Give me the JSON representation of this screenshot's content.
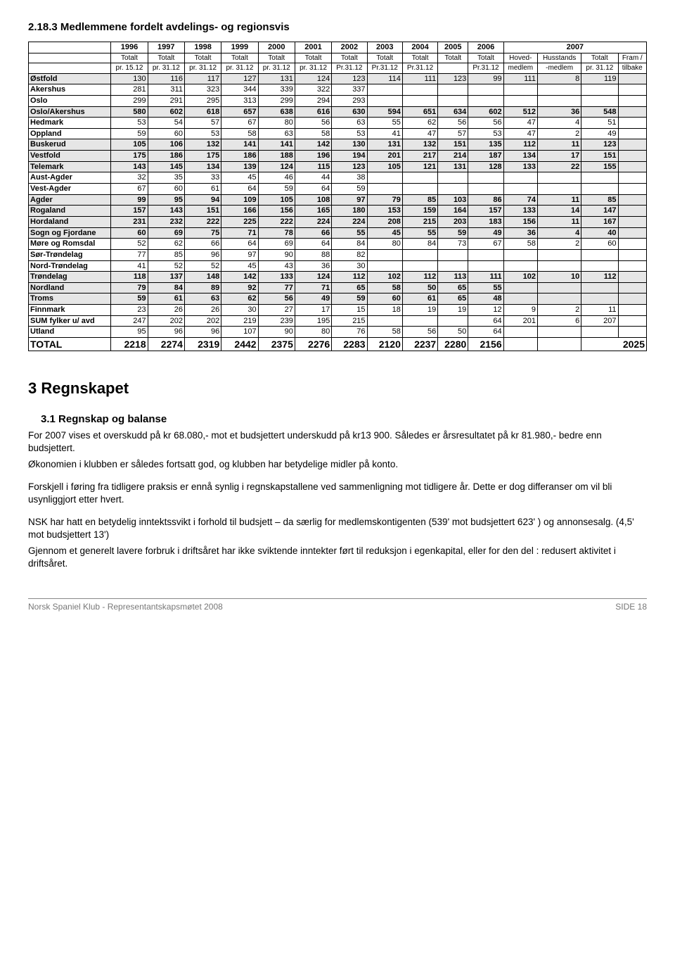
{
  "section_title": "2.18.3 Medlemmene fordelt avdelings- og regionsvis",
  "years": [
    "1996",
    "1997",
    "1998",
    "1999",
    "2000",
    "2001",
    "2002",
    "2003",
    "2004"
  ],
  "year_0506": [
    "2005",
    "2006"
  ],
  "year_2007": "2007",
  "sub_row1": [
    "Totalt",
    "Totalt",
    "Totalt",
    "Totalt",
    "Totalt",
    "Totalt",
    "Totalt",
    "Totalt",
    "Totalt",
    "Totalt",
    "Totalt",
    "Hoved-",
    "Husstands",
    "Totalt",
    "Fram /"
  ],
  "sub_row2": [
    "pr. 15.12",
    "pr. 31.12",
    "pr. 31.12",
    "pr. 31.12",
    "pr. 31.12",
    "pr. 31.12",
    "Pr.31.12",
    "Pr.31.12",
    "Pr.31.12",
    "",
    "Pr.31.12",
    "medlem",
    "-medlem",
    "pr. 31.12",
    "tilbake"
  ],
  "rows": [
    {
      "label": "Østfold",
      "shade": true,
      "vals": [
        "130",
        "116",
        "117",
        "127",
        "131",
        "124",
        "123",
        "114",
        "111",
        "123",
        "99",
        "111",
        "8",
        "119",
        ""
      ]
    },
    {
      "label": "Akershus",
      "vals": [
        "281",
        "311",
        "323",
        "344",
        "339",
        "322",
        "337",
        "",
        "",
        "",
        "",
        "",
        "",
        "",
        ""
      ]
    },
    {
      "label": "Oslo",
      "vals": [
        "299",
        "291",
        "295",
        "313",
        "299",
        "294",
        "293",
        "",
        "",
        "",
        "",
        "",
        "",
        "",
        ""
      ]
    },
    {
      "label": "Oslo/Akershus",
      "shade": true,
      "bold": true,
      "vals": [
        "580",
        "602",
        "618",
        "657",
        "638",
        "616",
        "630",
        "594",
        "651",
        "634",
        "602",
        "512",
        "36",
        "548",
        ""
      ]
    },
    {
      "label": "Hedmark",
      "vals": [
        "53",
        "54",
        "57",
        "67",
        "80",
        "56",
        "63",
        "55",
        "62",
        "56",
        "56",
        "47",
        "4",
        "51",
        ""
      ]
    },
    {
      "label": "Oppland",
      "vals": [
        "59",
        "60",
        "53",
        "58",
        "63",
        "58",
        "53",
        "41",
        "47",
        "57",
        "53",
        "47",
        "2",
        "49",
        ""
      ]
    },
    {
      "label": "Buskerud",
      "shade": true,
      "bold": true,
      "vals": [
        "105",
        "106",
        "132",
        "141",
        "141",
        "142",
        "130",
        "131",
        "132",
        "151",
        "135",
        "112",
        "11",
        "123",
        ""
      ]
    },
    {
      "label": "Vestfold",
      "shade": true,
      "bold": true,
      "vals": [
        "175",
        "186",
        "175",
        "186",
        "188",
        "196",
        "194",
        "201",
        "217",
        "214",
        "187",
        "134",
        "17",
        "151",
        ""
      ]
    },
    {
      "label": "Telemark",
      "shade": true,
      "bold": true,
      "vals": [
        "143",
        "145",
        "134",
        "139",
        "124",
        "115",
        "123",
        "105",
        "121",
        "131",
        "128",
        "133",
        "22",
        "155",
        ""
      ]
    },
    {
      "label": "Aust-Agder",
      "vals": [
        "32",
        "35",
        "33",
        "45",
        "46",
        "44",
        "38",
        "",
        "",
        "",
        "",
        "",
        "",
        "",
        ""
      ]
    },
    {
      "label": "Vest-Agder",
      "vals": [
        "67",
        "60",
        "61",
        "64",
        "59",
        "64",
        "59",
        "",
        "",
        "",
        "",
        "",
        "",
        "",
        ""
      ]
    },
    {
      "label": "Agder",
      "shade": true,
      "bold": true,
      "vals": [
        "99",
        "95",
        "94",
        "109",
        "105",
        "108",
        "97",
        "79",
        "85",
        "103",
        "86",
        "74",
        "11",
        "85",
        ""
      ]
    },
    {
      "label": "Rogaland",
      "shade": true,
      "bold": true,
      "vals": [
        "157",
        "143",
        "151",
        "166",
        "156",
        "165",
        "180",
        "153",
        "159",
        "164",
        "157",
        "133",
        "14",
        "147",
        ""
      ]
    },
    {
      "label": "Hordaland",
      "shade": true,
      "bold": true,
      "vals": [
        "231",
        "232",
        "222",
        "225",
        "222",
        "224",
        "224",
        "208",
        "215",
        "203",
        "183",
        "156",
        "11",
        "167",
        ""
      ]
    },
    {
      "label": "Sogn og Fjordane",
      "shade": true,
      "bold": true,
      "vals": [
        "60",
        "69",
        "75",
        "71",
        "78",
        "66",
        "55",
        "45",
        "55",
        "59",
        "49",
        "36",
        "4",
        "40",
        ""
      ]
    },
    {
      "label": "Møre og Romsdal",
      "vals": [
        "52",
        "62",
        "66",
        "64",
        "69",
        "64",
        "84",
        "80",
        "84",
        "73",
        "67",
        "58",
        "2",
        "60",
        ""
      ]
    },
    {
      "label": "Sør-Trøndelag",
      "vals": [
        "77",
        "85",
        "96",
        "97",
        "90",
        "88",
        "82",
        "",
        "",
        "",
        "",
        "",
        "",
        "",
        ""
      ]
    },
    {
      "label": "Nord-Trøndelag",
      "vals": [
        "41",
        "52",
        "52",
        "45",
        "43",
        "36",
        "30",
        "",
        "",
        "",
        "",
        "",
        "",
        "",
        ""
      ]
    },
    {
      "label": "Trøndelag",
      "shade": true,
      "bold": true,
      "vals": [
        "118",
        "137",
        "148",
        "142",
        "133",
        "124",
        "112",
        "102",
        "112",
        "113",
        "111",
        "102",
        "10",
        "112",
        ""
      ]
    },
    {
      "label": "Nordland",
      "shade": true,
      "bold": true,
      "vals": [
        "79",
        "84",
        "89",
        "92",
        "77",
        "71",
        "65",
        "58",
        "50",
        "65",
        "55",
        "",
        "",
        "",
        ""
      ]
    },
    {
      "label": "Troms",
      "shade": true,
      "bold": true,
      "vals": [
        "59",
        "61",
        "63",
        "62",
        "56",
        "49",
        "59",
        "60",
        "61",
        "65",
        "48",
        "",
        "",
        "",
        ""
      ]
    },
    {
      "label": "Finnmark",
      "vals": [
        "23",
        "26",
        "26",
        "30",
        "27",
        "17",
        "15",
        "18",
        "19",
        "19",
        "12",
        "9",
        "2",
        "11",
        ""
      ]
    },
    {
      "label": "SUM fylker u/ avd",
      "vals": [
        "247",
        "202",
        "202",
        "219",
        "239",
        "195",
        "215",
        "",
        "",
        "",
        "64",
        "201",
        "6",
        "207",
        ""
      ]
    },
    {
      "label": "Utland",
      "vals": [
        "95",
        "96",
        "96",
        "107",
        "90",
        "80",
        "76",
        "58",
        "56",
        "50",
        "64",
        "",
        "",
        "",
        ""
      ]
    }
  ],
  "total": {
    "label": "TOTAL",
    "vals": [
      "2218",
      "2274",
      "2319",
      "2442",
      "2375",
      "2276",
      "2283",
      "2120",
      "2237",
      "2280",
      "2156",
      "",
      "",
      "2025",
      ""
    ]
  },
  "h1": "3 Regnskapet",
  "h3": "3.1 Regnskap og balanse",
  "para1": "For 2007 vises et overskudd på kr 68.080,-  mot et budsjettert underskudd på kr13 900. Således er årsresultatet på kr 81.980,- bedre enn budsjettert.",
  "para2": "Økonomien i klubben er således fortsatt god, og klubben har betydelige midler på konto.",
  "para3": "Forskjell i føring fra tidligere praksis er ennå synlig i regnskapstallene ved sammenligning mot tidligere år. Dette er dog differanser om vil bli usynliggjort etter hvert.",
  "para4": "NSK har hatt en betydelig inntektssvikt i forhold til budsjett – da særlig for medlemskontigenten (539' mot budsjettert 623' ) og annonsesalg. (4,5' mot budsjettert 13')",
  "para5": "Gjennom et generelt lavere forbruk i driftsåret har ikke sviktende inntekter ført til reduksjon i egenkapital, eller for den del : redusert aktivitet i driftsåret.",
  "footer_left": "Norsk Spaniel Klub - Representantskapsmøtet 2008",
  "footer_right": "SIDE  18"
}
